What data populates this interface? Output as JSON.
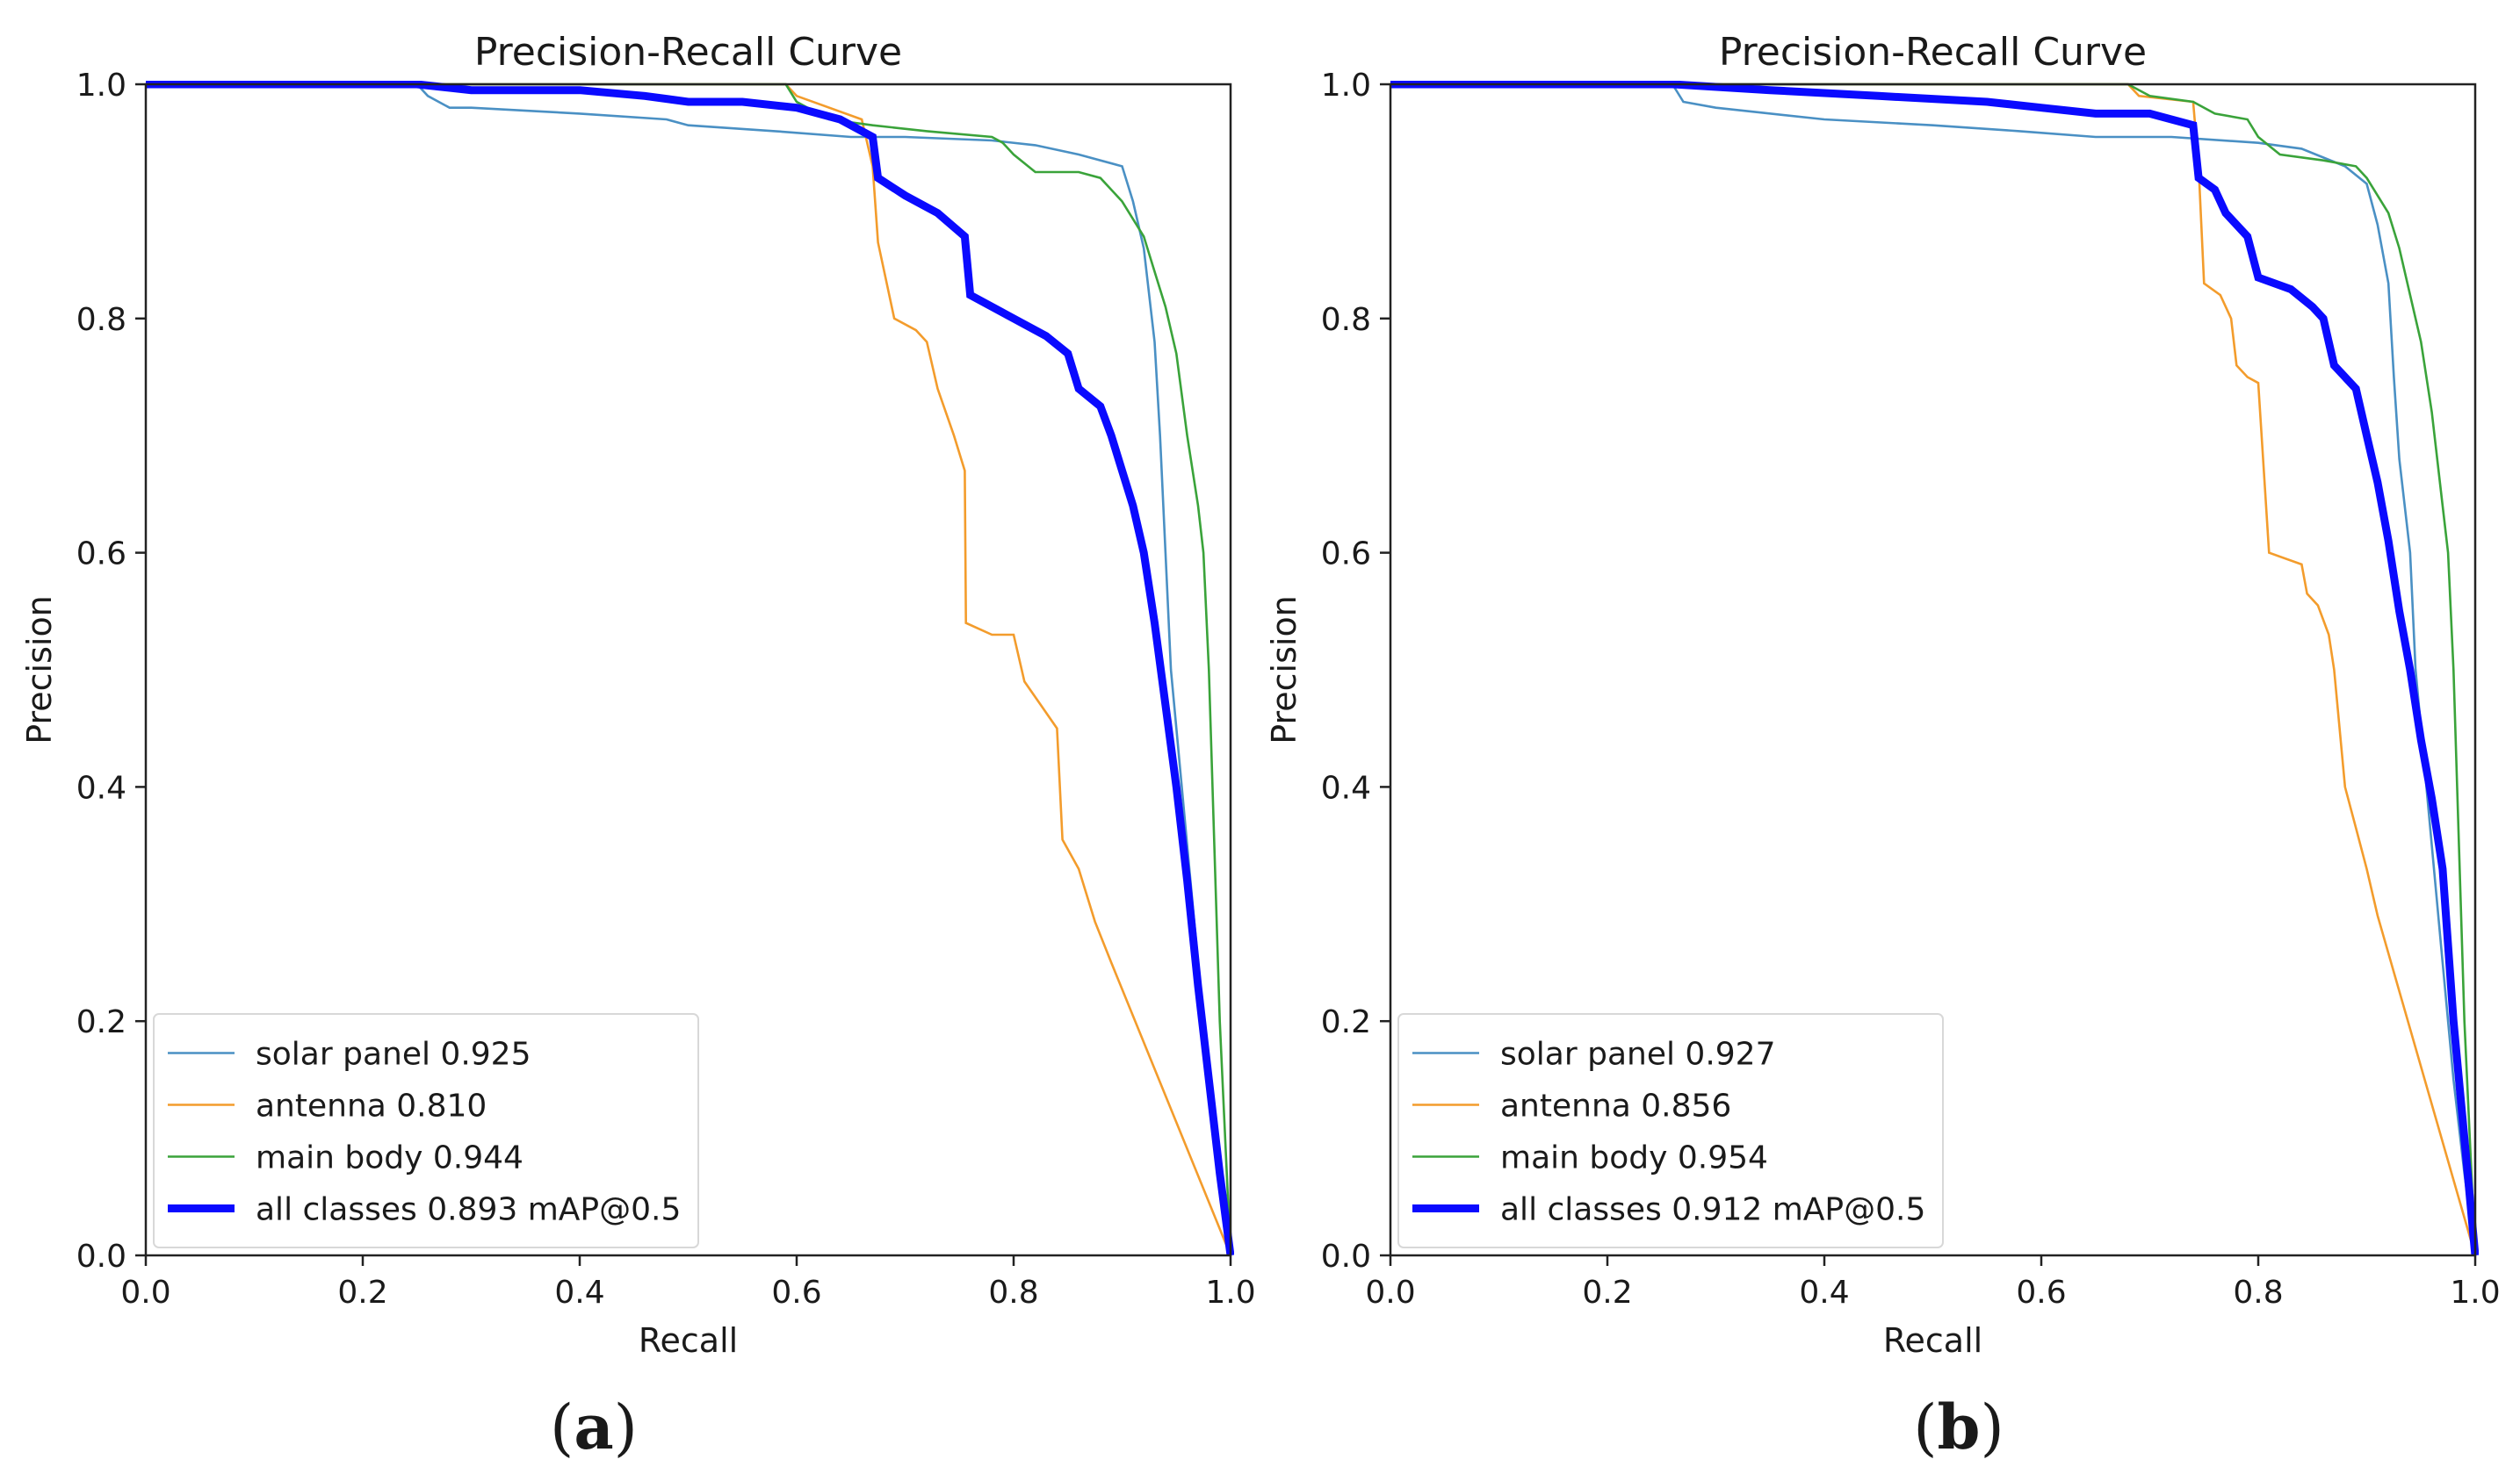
{
  "chart_data": [
    {
      "type": "line",
      "panel_label": "a",
      "title": "Precision-Recall Curve",
      "xlabel": "Recall",
      "ylabel": "Precision",
      "xlim": [
        0,
        1
      ],
      "ylim": [
        0,
        1
      ],
      "xticks": [
        "0.0",
        "0.2",
        "0.4",
        "0.6",
        "0.8",
        "1.0"
      ],
      "yticks": [
        "0.0",
        "0.2",
        "0.4",
        "0.6",
        "0.8",
        "1.0"
      ],
      "grid": false,
      "legend_position": "lower-left",
      "series": [
        {
          "name": "solar panel 0.925",
          "color": "#4a90c4",
          "emphasis": "thin",
          "points": [
            [
              0,
              1
            ],
            [
              0.25,
              1
            ],
            [
              0.26,
              0.99
            ],
            [
              0.28,
              0.98
            ],
            [
              0.3,
              0.98
            ],
            [
              0.4,
              0.975
            ],
            [
              0.48,
              0.97
            ],
            [
              0.5,
              0.965
            ],
            [
              0.58,
              0.96
            ],
            [
              0.65,
              0.955
            ],
            [
              0.7,
              0.955
            ],
            [
              0.78,
              0.952
            ],
            [
              0.82,
              0.948
            ],
            [
              0.86,
              0.94
            ],
            [
              0.9,
              0.93
            ],
            [
              0.91,
              0.9
            ],
            [
              0.92,
              0.86
            ],
            [
              0.93,
              0.78
            ],
            [
              0.935,
              0.7
            ],
            [
              0.94,
              0.6
            ],
            [
              0.945,
              0.5
            ],
            [
              0.95,
              0.45
            ],
            [
              0.96,
              0.35
            ],
            [
              0.97,
              0.25
            ],
            [
              0.98,
              0.15
            ],
            [
              0.99,
              0.06
            ],
            [
              1.0,
              0
            ]
          ]
        },
        {
          "name": "antenna 0.810",
          "color": "#f39c2c",
          "emphasis": "thin",
          "points": [
            [
              0,
              1
            ],
            [
              0.59,
              1
            ],
            [
              0.6,
              0.99
            ],
            [
              0.66,
              0.97
            ],
            [
              0.67,
              0.93
            ],
            [
              0.675,
              0.865
            ],
            [
              0.69,
              0.8
            ],
            [
              0.71,
              0.79
            ],
            [
              0.72,
              0.78
            ],
            [
              0.73,
              0.74
            ],
            [
              0.745,
              0.7
            ],
            [
              0.755,
              0.67
            ],
            [
              0.756,
              0.54
            ],
            [
              0.78,
              0.53
            ],
            [
              0.8,
              0.53
            ],
            [
              0.81,
              0.49
            ],
            [
              0.825,
              0.47
            ],
            [
              0.84,
              0.45
            ],
            [
              0.845,
              0.355
            ],
            [
              0.86,
              0.33
            ],
            [
              0.875,
              0.285
            ],
            [
              0.89,
              0.25
            ],
            [
              1.0,
              0
            ]
          ]
        },
        {
          "name": "main body 0.944",
          "color": "#3aa33a",
          "emphasis": "thin",
          "points": [
            [
              0,
              1
            ],
            [
              0.59,
              1
            ],
            [
              0.6,
              0.985
            ],
            [
              0.63,
              0.97
            ],
            [
              0.67,
              0.965
            ],
            [
              0.72,
              0.96
            ],
            [
              0.78,
              0.955
            ],
            [
              0.79,
              0.95
            ],
            [
              0.8,
              0.94
            ],
            [
              0.82,
              0.925
            ],
            [
              0.86,
              0.925
            ],
            [
              0.88,
              0.92
            ],
            [
              0.9,
              0.9
            ],
            [
              0.92,
              0.87
            ],
            [
              0.93,
              0.84
            ],
            [
              0.94,
              0.81
            ],
            [
              0.95,
              0.77
            ],
            [
              0.96,
              0.7
            ],
            [
              0.97,
              0.64
            ],
            [
              0.975,
              0.6
            ],
            [
              0.98,
              0.5
            ],
            [
              0.985,
              0.35
            ],
            [
              0.99,
              0.2
            ],
            [
              1.0,
              0
            ]
          ]
        },
        {
          "name": "all classes 0.893 mAP@0.5",
          "color": "#0a0aff",
          "emphasis": "thick",
          "points": [
            [
              0,
              1
            ],
            [
              0.25,
              1
            ],
            [
              0.3,
              0.995
            ],
            [
              0.4,
              0.995
            ],
            [
              0.46,
              0.99
            ],
            [
              0.5,
              0.985
            ],
            [
              0.55,
              0.985
            ],
            [
              0.6,
              0.98
            ],
            [
              0.64,
              0.97
            ],
            [
              0.67,
              0.955
            ],
            [
              0.675,
              0.92
            ],
            [
              0.7,
              0.905
            ],
            [
              0.73,
              0.89
            ],
            [
              0.755,
              0.87
            ],
            [
              0.76,
              0.82
            ],
            [
              0.8,
              0.8
            ],
            [
              0.83,
              0.785
            ],
            [
              0.85,
              0.77
            ],
            [
              0.86,
              0.74
            ],
            [
              0.88,
              0.725
            ],
            [
              0.89,
              0.7
            ],
            [
              0.9,
              0.67
            ],
            [
              0.91,
              0.64
            ],
            [
              0.92,
              0.6
            ],
            [
              0.93,
              0.54
            ],
            [
              0.94,
              0.47
            ],
            [
              0.95,
              0.4
            ],
            [
              0.96,
              0.32
            ],
            [
              0.97,
              0.23
            ],
            [
              0.98,
              0.15
            ],
            [
              0.99,
              0.07
            ],
            [
              1.0,
              0
            ]
          ]
        }
      ]
    },
    {
      "type": "line",
      "panel_label": "b",
      "title": "Precision-Recall Curve",
      "xlabel": "Recall",
      "ylabel": "Precision",
      "xlim": [
        0,
        1
      ],
      "ylim": [
        0,
        1
      ],
      "xticks": [
        "0.0",
        "0.2",
        "0.4",
        "0.6",
        "0.8",
        "1.0"
      ],
      "yticks": [
        "0.0",
        "0.2",
        "0.4",
        "0.6",
        "0.8",
        "1.0"
      ],
      "grid": false,
      "legend_position": "lower-left",
      "series": [
        {
          "name": "solar panel 0.927",
          "color": "#4a90c4",
          "emphasis": "thin",
          "points": [
            [
              0,
              1
            ],
            [
              0.26,
              1
            ],
            [
              0.27,
              0.985
            ],
            [
              0.3,
              0.98
            ],
            [
              0.4,
              0.97
            ],
            [
              0.5,
              0.965
            ],
            [
              0.58,
              0.96
            ],
            [
              0.65,
              0.955
            ],
            [
              0.72,
              0.955
            ],
            [
              0.8,
              0.95
            ],
            [
              0.84,
              0.945
            ],
            [
              0.88,
              0.93
            ],
            [
              0.9,
              0.915
            ],
            [
              0.91,
              0.88
            ],
            [
              0.92,
              0.83
            ],
            [
              0.925,
              0.75
            ],
            [
              0.93,
              0.68
            ],
            [
              0.94,
              0.6
            ],
            [
              0.945,
              0.5
            ],
            [
              0.95,
              0.45
            ],
            [
              0.96,
              0.35
            ],
            [
              0.97,
              0.25
            ],
            [
              0.98,
              0.15
            ],
            [
              0.99,
              0.07
            ],
            [
              1.0,
              0
            ]
          ]
        },
        {
          "name": "antenna 0.856",
          "color": "#f39c2c",
          "emphasis": "thin",
          "points": [
            [
              0,
              1
            ],
            [
              0.68,
              1
            ],
            [
              0.69,
              0.99
            ],
            [
              0.74,
              0.985
            ],
            [
              0.745,
              0.93
            ],
            [
              0.75,
              0.83
            ],
            [
              0.765,
              0.82
            ],
            [
              0.775,
              0.8
            ],
            [
              0.78,
              0.76
            ],
            [
              0.79,
              0.75
            ],
            [
              0.8,
              0.745
            ],
            [
              0.81,
              0.6
            ],
            [
              0.84,
              0.59
            ],
            [
              0.845,
              0.565
            ],
            [
              0.855,
              0.555
            ],
            [
              0.865,
              0.53
            ],
            [
              0.87,
              0.5
            ],
            [
              0.88,
              0.4
            ],
            [
              0.89,
              0.365
            ],
            [
              0.9,
              0.33
            ],
            [
              0.91,
              0.29
            ],
            [
              1.0,
              0
            ]
          ]
        },
        {
          "name": "main body 0.954",
          "color": "#3aa33a",
          "emphasis": "thin",
          "points": [
            [
              0,
              1
            ],
            [
              0.68,
              1
            ],
            [
              0.7,
              0.99
            ],
            [
              0.74,
              0.985
            ],
            [
              0.76,
              0.975
            ],
            [
              0.79,
              0.97
            ],
            [
              0.8,
              0.955
            ],
            [
              0.82,
              0.94
            ],
            [
              0.86,
              0.935
            ],
            [
              0.89,
              0.93
            ],
            [
              0.9,
              0.92
            ],
            [
              0.92,
              0.89
            ],
            [
              0.93,
              0.86
            ],
            [
              0.94,
              0.82
            ],
            [
              0.95,
              0.78
            ],
            [
              0.96,
              0.72
            ],
            [
              0.97,
              0.64
            ],
            [
              0.975,
              0.6
            ],
            [
              0.98,
              0.5
            ],
            [
              0.985,
              0.35
            ],
            [
              0.99,
              0.2
            ],
            [
              1.0,
              0
            ]
          ]
        },
        {
          "name": "all classes 0.912 mAP@0.5",
          "color": "#0a0aff",
          "emphasis": "thick",
          "points": [
            [
              0,
              1
            ],
            [
              0.26,
              1
            ],
            [
              0.35,
              0.995
            ],
            [
              0.45,
              0.99
            ],
            [
              0.55,
              0.985
            ],
            [
              0.6,
              0.98
            ],
            [
              0.65,
              0.975
            ],
            [
              0.7,
              0.975
            ],
            [
              0.74,
              0.965
            ],
            [
              0.745,
              0.92
            ],
            [
              0.76,
              0.91
            ],
            [
              0.77,
              0.89
            ],
            [
              0.79,
              0.87
            ],
            [
              0.8,
              0.835
            ],
            [
              0.83,
              0.825
            ],
            [
              0.85,
              0.81
            ],
            [
              0.86,
              0.8
            ],
            [
              0.87,
              0.76
            ],
            [
              0.89,
              0.74
            ],
            [
              0.9,
              0.7
            ],
            [
              0.91,
              0.66
            ],
            [
              0.92,
              0.61
            ],
            [
              0.93,
              0.55
            ],
            [
              0.94,
              0.5
            ],
            [
              0.95,
              0.44
            ],
            [
              0.96,
              0.39
            ],
            [
              0.97,
              0.33
            ],
            [
              0.98,
              0.2
            ],
            [
              0.99,
              0.1
            ],
            [
              1.0,
              0
            ]
          ]
        }
      ]
    }
  ]
}
